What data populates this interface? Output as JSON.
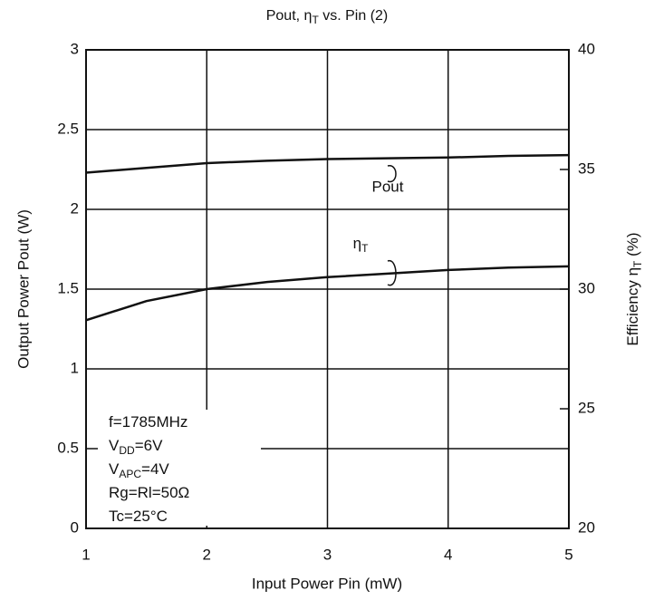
{
  "chart_data": {
    "type": "line",
    "title": [
      {
        "text": "Pout, η"
      },
      {
        "sub": "T"
      },
      {
        "text": " vs. Pin (2)"
      }
    ],
    "x_label": "Input Power Pin  (mW)",
    "y_label": "Output Power  Pout  (W)",
    "y2_label": [
      {
        "text": "Efficiency  η"
      },
      {
        "sub": "T"
      },
      {
        "text": "  (%)"
      }
    ],
    "x": [
      1,
      1.5,
      2,
      2.5,
      3,
      3.5,
      4,
      4.5,
      5
    ],
    "xlim": [
      1,
      5
    ],
    "xticks": [
      1,
      2,
      3,
      4,
      5
    ],
    "ylim": [
      0,
      3
    ],
    "yticks": [
      0,
      0.5,
      1,
      1.5,
      2,
      2.5,
      3
    ],
    "y2lim": [
      20,
      40
    ],
    "y2ticks": [
      20,
      25,
      30,
      35,
      40
    ],
    "grid": true,
    "series": [
      {
        "name": "Pout",
        "color": "#111111",
        "values": [
          2.23,
          2.26,
          2.29,
          2.305,
          2.315,
          2.32,
          2.325,
          2.335,
          2.34
        ]
      },
      {
        "name": [
          {
            "text": "η"
          },
          {
            "sub": "T"
          }
        ],
        "color": "#111111",
        "axis": "y2",
        "values": [
          28.7,
          29.5,
          30.0,
          30.3,
          30.5,
          30.65,
          30.8,
          30.9,
          30.95
        ]
      }
    ],
    "annotation": [
      [
        {
          "text": "f=1785MHz"
        }
      ],
      [
        {
          "text": "V"
        },
        {
          "sub": "DD"
        },
        {
          "text": "=6V"
        }
      ],
      [
        {
          "text": "V"
        },
        {
          "sub": "APC"
        },
        {
          "text": "=4V"
        }
      ],
      [
        {
          "text": "Rg=Rl=50Ω"
        }
      ],
      [
        {
          "text": "Tc=25°C"
        }
      ]
    ]
  }
}
